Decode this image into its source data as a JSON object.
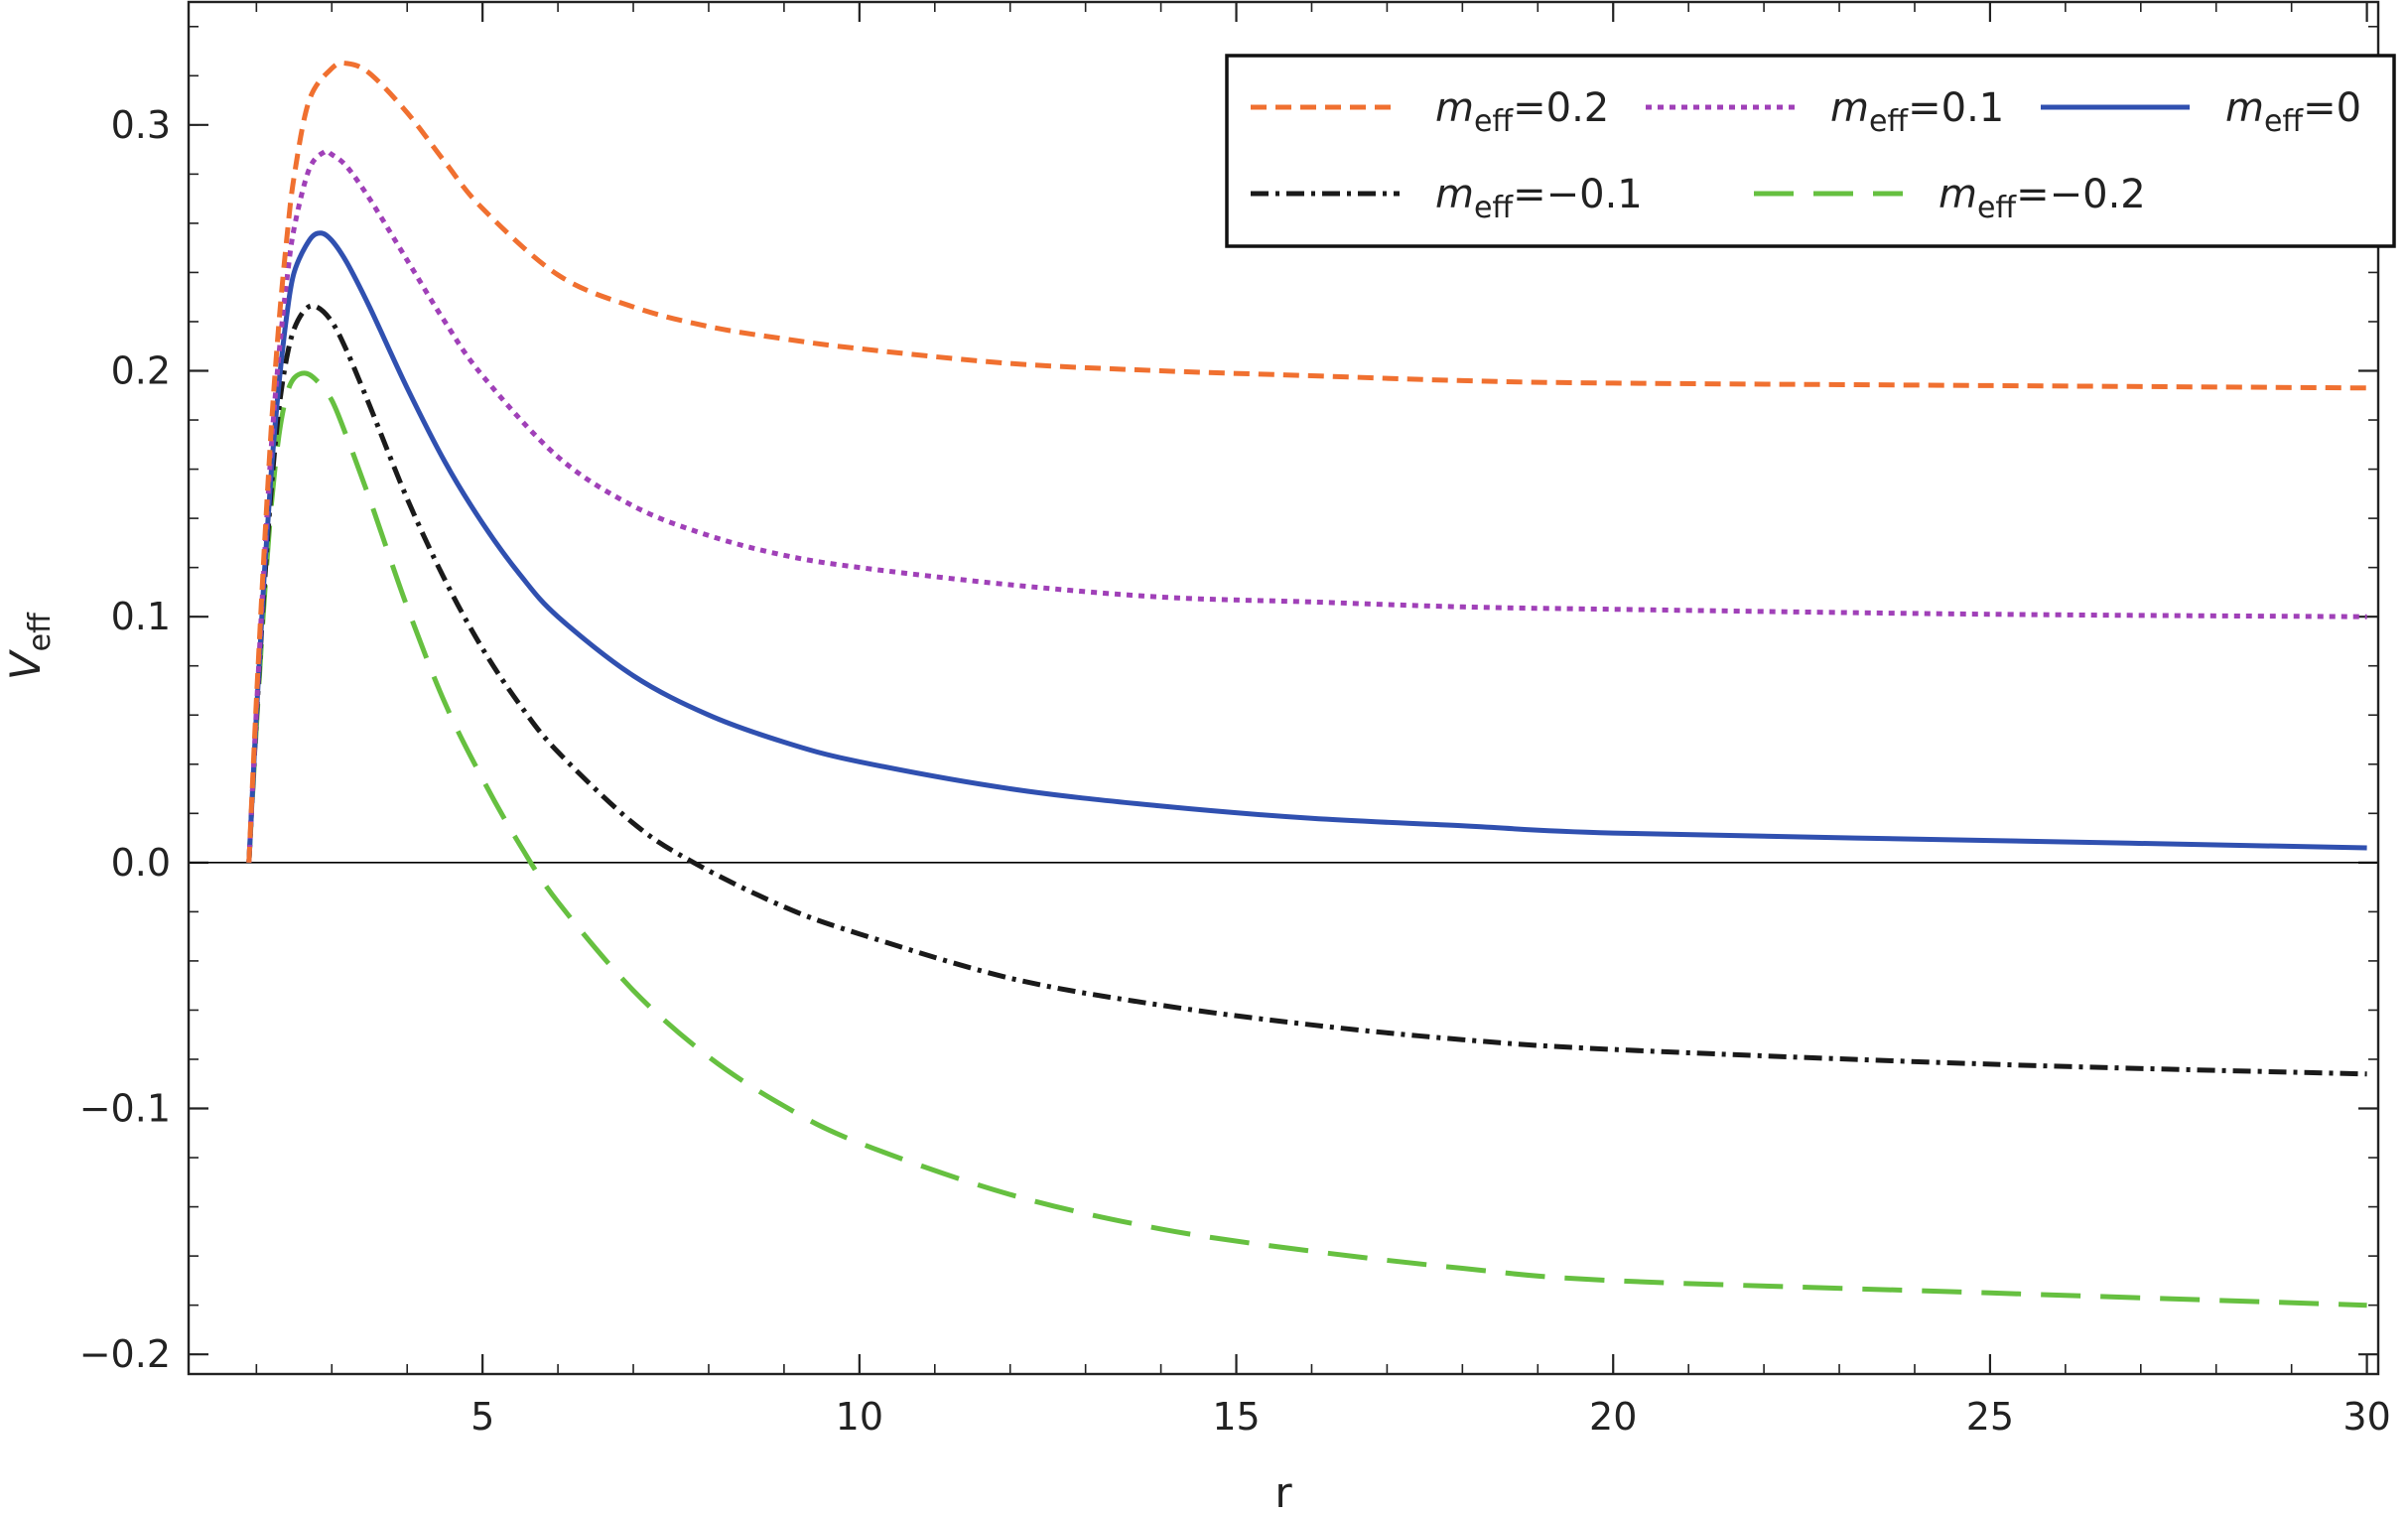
{
  "chart_data": {
    "type": "line",
    "title": "",
    "xlabel": "r",
    "ylabel": {
      "main": "V",
      "sub": "eff"
    },
    "xlim": [
      1.1,
      30.15
    ],
    "ylim": [
      -0.208,
      0.35
    ],
    "xticks": [
      5,
      10,
      15,
      20,
      25,
      30
    ],
    "xtick_labels": [
      "5",
      "10",
      "15",
      "20",
      "25",
      "30"
    ],
    "yticks": [
      -0.2,
      -0.1,
      0.0,
      0.1,
      0.2,
      0.3
    ],
    "ytick_labels": [
      "−0.2",
      "−0.1",
      "0.0",
      "0.1",
      "0.2",
      "0.3"
    ],
    "x_minor_step": 1,
    "y_minor_step": 0.02,
    "zero_line": true,
    "grid": false,
    "legend_position": "top-right",
    "series": [
      {
        "name": "m_eff=0.2",
        "label": {
          "pre": "m",
          "sub": "eff",
          "post": "=0.2"
        },
        "color": "#f07030",
        "dash": "16,9",
        "x": [
          1.9,
          2.0,
          2.1,
          2.2,
          2.3,
          2.4,
          2.5,
          2.7,
          3.0,
          3.2,
          3.5,
          4.0,
          4.5,
          5.0,
          6.0,
          7.0,
          8.0,
          9.0,
          10.0,
          12.0,
          14.0,
          16.0,
          18.0,
          20.0,
          25.0,
          30.0
        ],
        "y": [
          0.0,
          0.066,
          0.125,
          0.178,
          0.22,
          0.253,
          0.279,
          0.31,
          0.323,
          0.325,
          0.321,
          0.305,
          0.285,
          0.266,
          0.239,
          0.226,
          0.218,
          0.213,
          0.209,
          0.203,
          0.2,
          0.198,
          0.196,
          0.195,
          0.194,
          0.193
        ]
      },
      {
        "name": "m_eff=0.1",
        "label": {
          "pre": "m",
          "sub": "eff",
          "post": "=0.1"
        },
        "color": "#a040b8",
        "dash": "6,6",
        "x": [
          1.9,
          2.0,
          2.1,
          2.2,
          2.3,
          2.4,
          2.5,
          2.7,
          2.9,
          3.0,
          3.2,
          3.5,
          4.0,
          4.5,
          5.0,
          6.0,
          7.0,
          8.0,
          9.0,
          10.0,
          12.0,
          14.0,
          16.0,
          18.0,
          20.0,
          25.0,
          30.0
        ],
        "y": [
          0.0,
          0.062,
          0.12,
          0.17,
          0.207,
          0.236,
          0.258,
          0.282,
          0.289,
          0.288,
          0.283,
          0.27,
          0.245,
          0.22,
          0.198,
          0.165,
          0.145,
          0.133,
          0.125,
          0.12,
          0.113,
          0.108,
          0.106,
          0.104,
          0.103,
          0.101,
          0.1
        ]
      },
      {
        "name": "m_eff=0",
        "label": {
          "pre": "m",
          "sub": "eff",
          "post": "=0"
        },
        "color": "#3050b0",
        "dash": "",
        "x": [
          1.9,
          2.0,
          2.1,
          2.2,
          2.3,
          2.4,
          2.5,
          2.7,
          2.85,
          3.0,
          3.2,
          3.5,
          4.0,
          4.5,
          5.0,
          5.5,
          6.0,
          7.0,
          8.0,
          9.0,
          10.0,
          12.0,
          14.0,
          16.0,
          18.0,
          20.0,
          25.0,
          30.0
        ],
        "y": [
          0.0,
          0.06,
          0.115,
          0.16,
          0.195,
          0.222,
          0.24,
          0.253,
          0.256,
          0.253,
          0.244,
          0.226,
          0.193,
          0.163,
          0.138,
          0.117,
          0.1,
          0.076,
          0.06,
          0.049,
          0.041,
          0.03,
          0.023,
          0.018,
          0.015,
          0.012,
          0.009,
          0.006
        ]
      },
      {
        "name": "m_eff=−0.1",
        "label": {
          "pre": "m",
          "sub": "eff",
          "post": "=−0.1"
        },
        "color": "#1a1a1a",
        "dash": "18,7,4,7",
        "x": [
          1.9,
          2.0,
          2.1,
          2.2,
          2.3,
          2.4,
          2.5,
          2.65,
          2.8,
          3.0,
          3.2,
          3.5,
          4.0,
          4.5,
          5.0,
          5.5,
          6.0,
          7.0,
          7.8,
          9.0,
          10.0,
          12.0,
          14.0,
          16.0,
          18.0,
          20.0,
          25.0,
          30.0
        ],
        "y": [
          0.0,
          0.058,
          0.11,
          0.153,
          0.185,
          0.205,
          0.217,
          0.225,
          0.226,
          0.22,
          0.208,
          0.186,
          0.148,
          0.115,
          0.087,
          0.064,
          0.045,
          0.016,
          0.0,
          -0.018,
          -0.029,
          -0.047,
          -0.058,
          -0.066,
          -0.072,
          -0.076,
          -0.082,
          -0.086
        ]
      },
      {
        "name": "m_eff=−0.2",
        "label": {
          "pre": "m",
          "sub": "eff",
          "post": "=−0.2"
        },
        "color": "#66c040",
        "dash": "40,20",
        "x": [
          1.9,
          2.0,
          2.1,
          2.2,
          2.3,
          2.4,
          2.5,
          2.65,
          2.8,
          3.0,
          3.2,
          3.5,
          4.0,
          4.5,
          5.0,
          5.5,
          6.0,
          7.0,
          8.0,
          9.0,
          10.0,
          12.0,
          14.0,
          16.0,
          18.0,
          20.0,
          25.0,
          30.0
        ],
        "y": [
          0.0,
          0.055,
          0.105,
          0.146,
          0.174,
          0.19,
          0.197,
          0.199,
          0.196,
          0.188,
          0.173,
          0.148,
          0.104,
          0.065,
          0.034,
          0.007,
          -0.016,
          -0.052,
          -0.079,
          -0.099,
          -0.114,
          -0.135,
          -0.149,
          -0.158,
          -0.165,
          -0.17,
          -0.175,
          -0.18
        ]
      }
    ]
  }
}
